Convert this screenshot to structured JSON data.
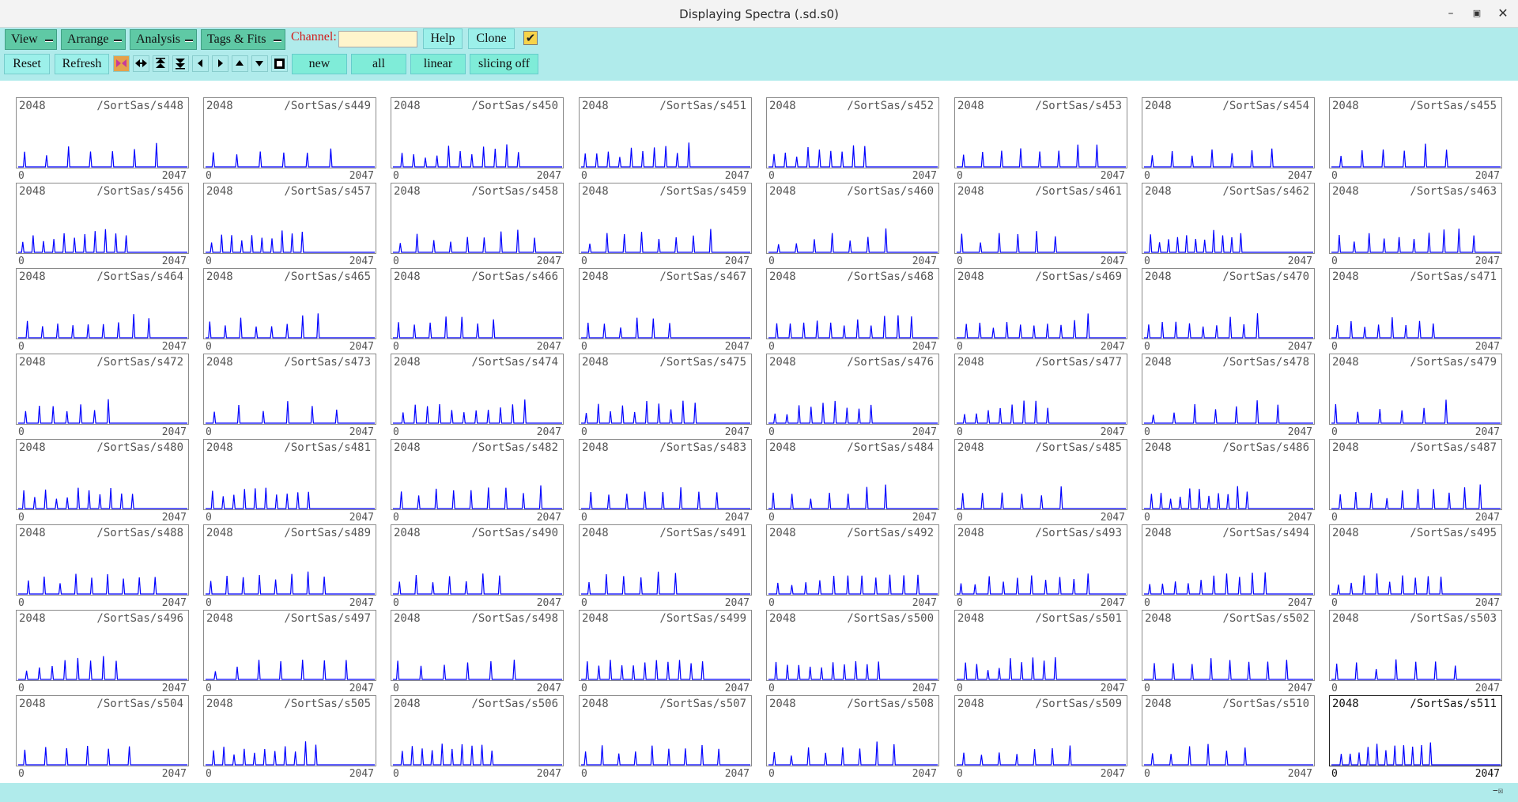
{
  "window": {
    "title": "Displaying Spectra (.sd.s0)"
  },
  "toolbar": {
    "menus": [
      "View",
      "Arrange",
      "Analysis",
      "Tags & Fits"
    ],
    "channel_label": "Channel:",
    "channel_value": "",
    "help_label": "Help",
    "clone_label": "Clone",
    "reset_label": "Reset",
    "refresh_label": "Refresh",
    "new_label": "new",
    "all_label": "all",
    "linear_label": "linear",
    "slicing_label": "slicing off",
    "checkbox_checked": true
  },
  "spectra": {
    "counts_label": "2048",
    "x_min": "0",
    "x_max": "2047",
    "trace_color": "#0000ff",
    "selected": "/SortSas/s511",
    "names": [
      "/SortSas/s448",
      "/SortSas/s449",
      "/SortSas/s450",
      "/SortSas/s451",
      "/SortSas/s452",
      "/SortSas/s453",
      "/SortSas/s454",
      "/SortSas/s455",
      "/SortSas/s456",
      "/SortSas/s457",
      "/SortSas/s458",
      "/SortSas/s459",
      "/SortSas/s460",
      "/SortSas/s461",
      "/SortSas/s462",
      "/SortSas/s463",
      "/SortSas/s464",
      "/SortSas/s465",
      "/SortSas/s466",
      "/SortSas/s467",
      "/SortSas/s468",
      "/SortSas/s469",
      "/SortSas/s470",
      "/SortSas/s471",
      "/SortSas/s472",
      "/SortSas/s473",
      "/SortSas/s474",
      "/SortSas/s475",
      "/SortSas/s476",
      "/SortSas/s477",
      "/SortSas/s478",
      "/SortSas/s479",
      "/SortSas/s480",
      "/SortSas/s481",
      "/SortSas/s482",
      "/SortSas/s483",
      "/SortSas/s484",
      "/SortSas/s485",
      "/SortSas/s486",
      "/SortSas/s487",
      "/SortSas/s488",
      "/SortSas/s489",
      "/SortSas/s490",
      "/SortSas/s491",
      "/SortSas/s492",
      "/SortSas/s493",
      "/SortSas/s494",
      "/SortSas/s495",
      "/SortSas/s496",
      "/SortSas/s497",
      "/SortSas/s498",
      "/SortSas/s499",
      "/SortSas/s500",
      "/SortSas/s501",
      "/SortSas/s502",
      "/SortSas/s503",
      "/SortSas/s504",
      "/SortSas/s505",
      "/SortSas/s506",
      "/SortSas/s507",
      "/SortSas/s508",
      "/SortSas/s509",
      "/SortSas/s510",
      "/SortSas/s511"
    ]
  }
}
